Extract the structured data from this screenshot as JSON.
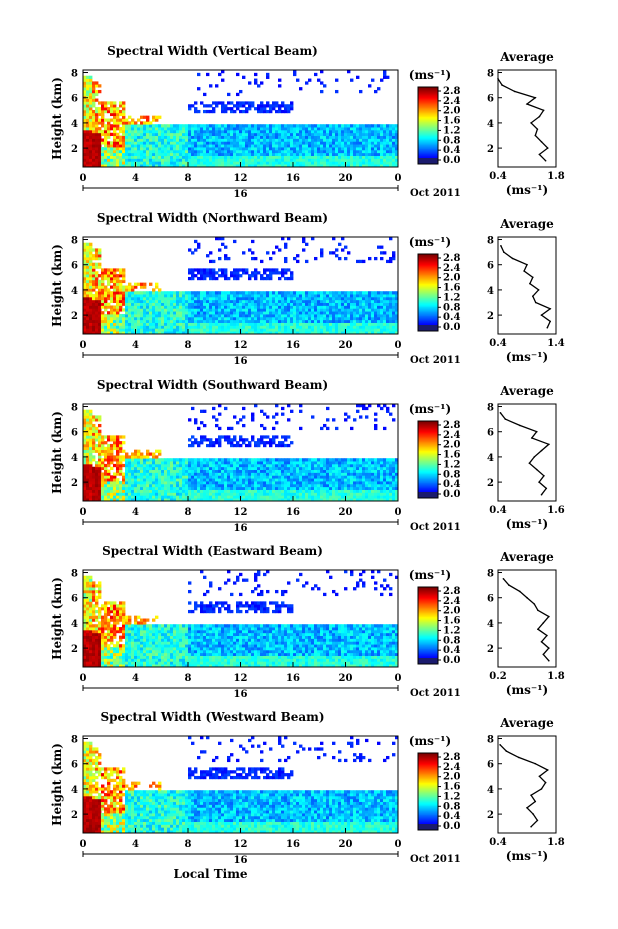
{
  "chart_data": [
    {
      "type": "heatmap",
      "title": "Spectral Width (Vertical Beam)",
      "ylabel": "Height (km)",
      "xticks": [
        "0",
        "4",
        "8",
        "12",
        "16",
        "20",
        "0"
      ],
      "day_label": "16",
      "date_label": "Oct 2011",
      "colorbar_unit": "(ms⁻¹)",
      "colorbar_ticks": [
        "2.8",
        "2.4",
        "2.0",
        "1.6",
        "1.2",
        "0.8",
        "0.4",
        "0.0"
      ],
      "yticks": [
        "8",
        "6",
        "4",
        "2"
      ],
      "xlim": [
        0,
        24
      ],
      "ylim": [
        0.5,
        8.2
      ],
      "average_profile": {
        "title": "Average",
        "xticks": [
          "0.4",
          "1.8"
        ],
        "xlabel": "(ms⁻¹)",
        "yticks": [
          "8",
          "6",
          "4",
          "2"
        ],
        "xlim": [
          0.4,
          1.8
        ],
        "height": [
          1.0,
          1.5,
          2.0,
          2.5,
          3.0,
          3.5,
          4.0,
          4.5,
          5.0,
          5.5,
          6.0,
          6.5,
          7.0,
          7.5
        ],
        "value": [
          1.55,
          1.4,
          1.6,
          1.45,
          1.3,
          1.35,
          1.2,
          1.4,
          1.5,
          1.1,
          1.3,
          0.8,
          0.5,
          0.4
        ]
      }
    },
    {
      "type": "heatmap",
      "title": "Spectral Width (Northward Beam)",
      "ylabel": "Height (km)",
      "xticks": [
        "0",
        "4",
        "8",
        "12",
        "16",
        "20",
        "0"
      ],
      "day_label": "16",
      "date_label": "Oct 2011",
      "colorbar_unit": "(ms⁻¹)",
      "colorbar_ticks": [
        "2.8",
        "2.4",
        "2.0",
        "1.6",
        "1.2",
        "0.8",
        "0.4",
        "0.0"
      ],
      "yticks": [
        "8",
        "6",
        "4",
        "2"
      ],
      "xlim": [
        0,
        24
      ],
      "ylim": [
        0.5,
        8.2
      ],
      "average_profile": {
        "title": "Average",
        "xticks": [
          "0.4",
          "1.4"
        ],
        "xlabel": "(ms⁻¹)",
        "yticks": [
          "8",
          "6",
          "4",
          "2"
        ],
        "xlim": [
          0.4,
          1.4
        ],
        "height": [
          1.0,
          1.5,
          2.0,
          2.5,
          3.0,
          3.5,
          4.0,
          4.5,
          5.0,
          5.5,
          6.0,
          6.5,
          7.0,
          7.5
        ],
        "value": [
          1.25,
          1.3,
          1.15,
          1.3,
          1.05,
          1.0,
          1.1,
          0.95,
          1.0,
          0.85,
          0.9,
          0.65,
          0.5,
          0.45
        ]
      }
    },
    {
      "type": "heatmap",
      "title": "Spectral Width (Southward Beam)",
      "ylabel": "Height (km)",
      "xticks": [
        "0",
        "4",
        "8",
        "12",
        "16",
        "20",
        "0"
      ],
      "day_label": "16",
      "date_label": "Oct 2011",
      "colorbar_unit": "(ms⁻¹)",
      "colorbar_ticks": [
        "2.8",
        "2.4",
        "2.0",
        "1.6",
        "1.2",
        "0.8",
        "0.4",
        "0.0"
      ],
      "yticks": [
        "8",
        "6",
        "4",
        "2"
      ],
      "xlim": [
        0,
        24
      ],
      "ylim": [
        0.5,
        8.2
      ],
      "average_profile": {
        "title": "Average",
        "xticks": [
          "0.4",
          "1.6"
        ],
        "xlabel": "(ms⁻¹)",
        "yticks": [
          "8",
          "6",
          "4",
          "2"
        ],
        "xlim": [
          0.4,
          1.6
        ],
        "height": [
          1.0,
          1.5,
          2.0,
          2.5,
          3.0,
          3.5,
          4.0,
          4.5,
          5.0,
          5.5,
          6.0,
          6.5,
          7.0,
          7.5
        ],
        "value": [
          1.3,
          1.4,
          1.25,
          1.35,
          1.2,
          1.05,
          1.15,
          1.3,
          1.45,
          1.1,
          1.2,
          0.85,
          0.55,
          0.45
        ]
      }
    },
    {
      "type": "heatmap",
      "title": "Spectral Width (Eastward Beam)",
      "ylabel": "Height (km)",
      "xticks": [
        "0",
        "4",
        "8",
        "12",
        "16",
        "20",
        "0"
      ],
      "day_label": "16",
      "date_label": "Oct 2011",
      "colorbar_unit": "(ms⁻¹)",
      "colorbar_ticks": [
        "2.8",
        "2.4",
        "2.0",
        "1.6",
        "1.2",
        "0.8",
        "0.4",
        "0.0"
      ],
      "yticks": [
        "8",
        "6",
        "4",
        "2"
      ],
      "xlim": [
        0,
        24
      ],
      "ylim": [
        0.5,
        8.2
      ],
      "average_profile": {
        "title": "Average",
        "xticks": [
          "0.2",
          "1.8"
        ],
        "xlabel": "(ms⁻¹)",
        "yticks": [
          "8",
          "6",
          "4",
          "2"
        ],
        "xlim": [
          0.2,
          1.8
        ],
        "height": [
          1.0,
          1.5,
          2.0,
          2.5,
          3.0,
          3.5,
          4.0,
          4.5,
          5.0,
          5.5,
          6.0,
          6.5,
          7.0,
          7.5
        ],
        "value": [
          1.6,
          1.45,
          1.6,
          1.4,
          1.55,
          1.3,
          1.45,
          1.6,
          1.3,
          1.2,
          1.0,
          0.8,
          0.5,
          0.35
        ]
      }
    },
    {
      "type": "heatmap",
      "title": "Spectral Width (Westward Beam)",
      "ylabel": "Height (km)",
      "xticks": [
        "0",
        "4",
        "8",
        "12",
        "16",
        "20",
        "0"
      ],
      "day_label": "16",
      "date_label": "Oct 2011",
      "xlabel": "Local Time",
      "colorbar_unit": "(ms⁻¹)",
      "colorbar_ticks": [
        "2.8",
        "2.4",
        "2.0",
        "1.6",
        "1.2",
        "0.8",
        "0.4",
        "0.0"
      ],
      "yticks": [
        "8",
        "6",
        "4",
        "2"
      ],
      "xlim": [
        0,
        24
      ],
      "ylim": [
        0.5,
        8.2
      ],
      "average_profile": {
        "title": "Average",
        "xticks": [
          "0.4",
          "1.8"
        ],
        "xlabel": "(ms⁻¹)",
        "yticks": [
          "8",
          "6",
          "4",
          "2"
        ],
        "xlim": [
          0.4,
          1.8
        ],
        "height": [
          1.0,
          1.5,
          2.0,
          2.5,
          3.0,
          3.5,
          4.0,
          4.5,
          5.0,
          5.5,
          6.0,
          6.5,
          7.0,
          7.5
        ],
        "value": [
          1.2,
          1.35,
          1.25,
          1.1,
          1.3,
          1.2,
          1.45,
          1.55,
          1.4,
          1.6,
          1.3,
          0.9,
          0.6,
          0.45
        ]
      }
    }
  ]
}
